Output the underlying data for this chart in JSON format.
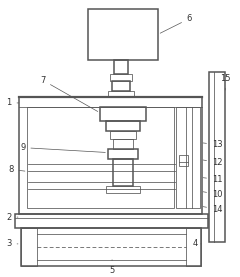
{
  "bg_color": "#ffffff",
  "line_color": "#555555",
  "label_color": "#333333",
  "lw_main": 1.1,
  "lw_thin": 0.55,
  "label_fs": 6.0
}
